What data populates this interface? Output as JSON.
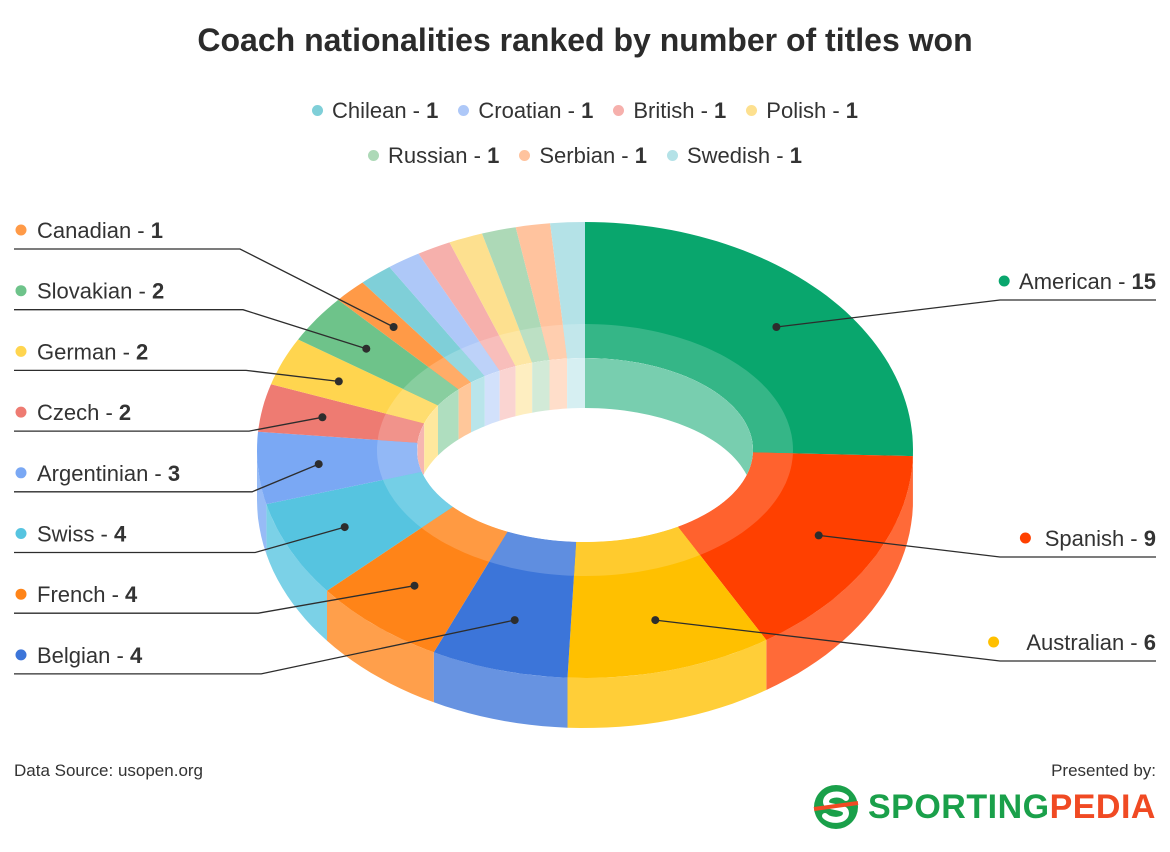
{
  "chart_data": {
    "type": "pie",
    "title": "Coach nationalities ranked by number of titles won",
    "slices": [
      {
        "name": "American",
        "value": 15,
        "color": "#09a66d"
      },
      {
        "name": "Spanish",
        "value": 9,
        "color": "#ff4000"
      },
      {
        "name": "Australian",
        "value": 6,
        "color": "#ffc000"
      },
      {
        "name": "Belgian",
        "value": 4,
        "color": "#3c75d9"
      },
      {
        "name": "French",
        "value": 4,
        "color": "#ff8418"
      },
      {
        "name": "Swiss",
        "value": 4,
        "color": "#56c4e0"
      },
      {
        "name": "Argentinian",
        "value": 3,
        "color": "#7aa8f4"
      },
      {
        "name": "Czech",
        "value": 2,
        "color": "#ee7b72"
      },
      {
        "name": "German",
        "value": 2,
        "color": "#ffd54f"
      },
      {
        "name": "Slovakian",
        "value": 2,
        "color": "#6ec38a"
      },
      {
        "name": "Canadian",
        "value": 1,
        "color": "#ff9a47"
      },
      {
        "name": "Chilean",
        "value": 1,
        "color": "#7fcfd8"
      },
      {
        "name": "Croatian",
        "value": 1,
        "color": "#aec8f8"
      },
      {
        "name": "British",
        "value": 1,
        "color": "#f6b0ac"
      },
      {
        "name": "Polish",
        "value": 1,
        "color": "#fde08f"
      },
      {
        "name": "Russian",
        "value": 1,
        "color": "#add9b7"
      },
      {
        "name": "Serbian",
        "value": 1,
        "color": "#ffc39e"
      },
      {
        "name": "Swedish",
        "value": 1,
        "color": "#b4e2e7"
      }
    ],
    "legend_top": [
      "Chilean",
      "Croatian",
      "British",
      "Polish",
      "Russian",
      "Serbian",
      "Swedish"
    ],
    "label_separator": " - ",
    "style": "3d-donut"
  },
  "footer": {
    "source": "Data Source: usopen.org",
    "presented_by": "Presented by:",
    "brand_part1": "SPORTING",
    "brand_part2": "PEDIA"
  }
}
